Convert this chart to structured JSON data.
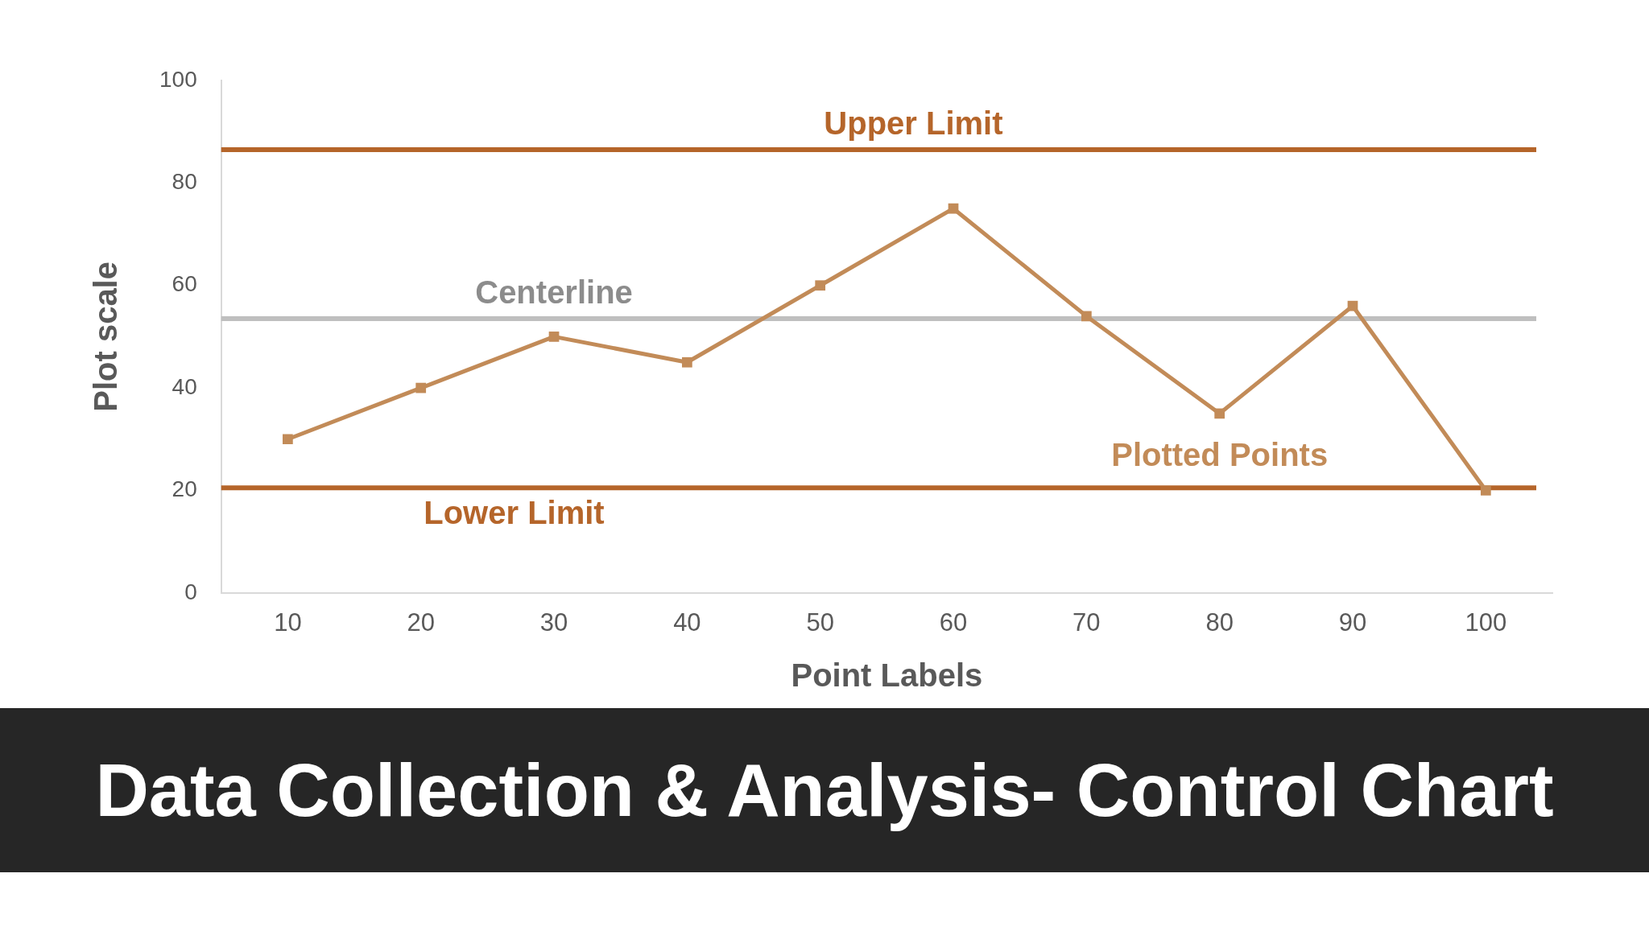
{
  "chart_data": {
    "type": "line",
    "title": "Data Collection & Analysis- Control Chart",
    "xlabel": "Point Labels",
    "ylabel": "Plot scale",
    "categories": [
      "10",
      "20",
      "30",
      "40",
      "50",
      "60",
      "70",
      "80",
      "90",
      "100"
    ],
    "series": [
      {
        "name": "Plotted Points",
        "color": "#c28b58",
        "values": [
          30,
          40,
          50,
          45,
          60,
          75,
          54,
          35,
          56,
          20
        ]
      }
    ],
    "ylim": [
      0,
      100
    ],
    "yticks": [
      0,
      20,
      40,
      60,
      80,
      100
    ],
    "grid": false,
    "legend": false,
    "marker": "square",
    "line_style": "solid",
    "ref_lines": [
      {
        "axis": "y",
        "value": 86.5,
        "label": "Upper Limit",
        "color": "#b5652a"
      },
      {
        "axis": "y",
        "value": 53.5,
        "label": "Centerline",
        "color": "#bfbfbf"
      },
      {
        "axis": "y",
        "value": 20.5,
        "label": "Lower Limit",
        "color": "#b5652a"
      }
    ]
  }
}
